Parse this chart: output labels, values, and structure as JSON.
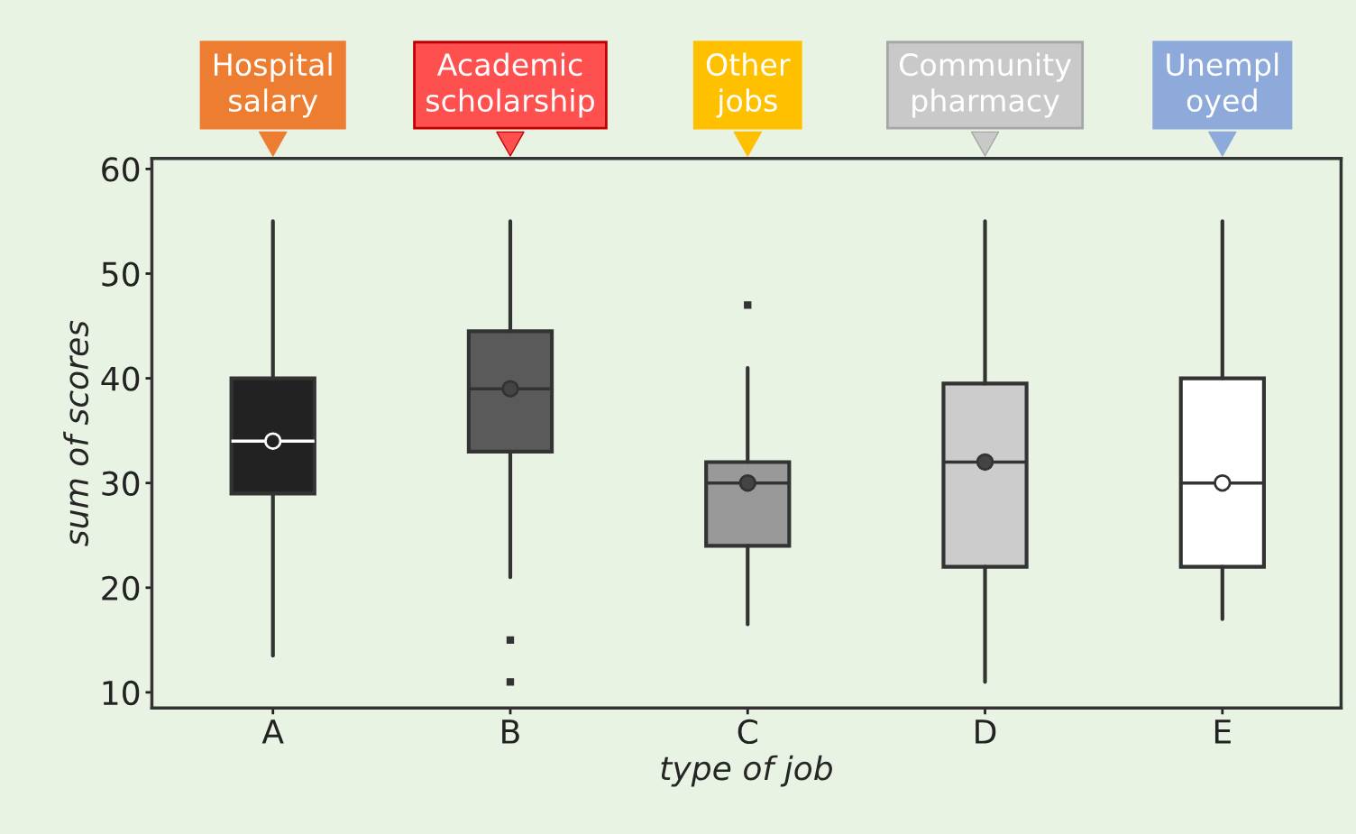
{
  "chart_data": {
    "type": "box",
    "xlabel": "type of job",
    "ylabel": "sum of scores",
    "categories": [
      "A",
      "B",
      "C",
      "D",
      "E"
    ],
    "colors": [
      "#222222",
      "#5a5a5a",
      "#999999",
      "#cccccc",
      "#ffffff"
    ],
    "boxes": [
      {
        "low": 13.5,
        "q1": 29,
        "median": 34,
        "q3": 40,
        "high": 55,
        "mean": 34
      },
      {
        "low": 21,
        "q1": 33,
        "median": 39,
        "q3": 44.5,
        "high": 55,
        "mean": 39,
        "outliers": [
          15,
          11
        ]
      },
      {
        "low": 16.5,
        "q1": 24,
        "median": 30,
        "q3": 32,
        "high": 41,
        "mean": 30,
        "outliers": [
          47
        ]
      },
      {
        "low": 11,
        "q1": 22,
        "median": 32,
        "q3": 39.5,
        "high": 55,
        "mean": 32
      },
      {
        "low": 17,
        "q1": 22,
        "median": 30,
        "q3": 40,
        "high": 55,
        "mean": 30
      }
    ],
    "annotations": [
      "Hospital\nsalary",
      "Academic\nscholarship",
      "Other\njobs",
      "Community\npharmacy",
      "Unempl\noyed"
    ],
    "ylim": [
      8.5,
      61
    ],
    "yticks": [
      10,
      20,
      30,
      40,
      50,
      60
    ],
    "grid": false,
    "legend": false
  }
}
